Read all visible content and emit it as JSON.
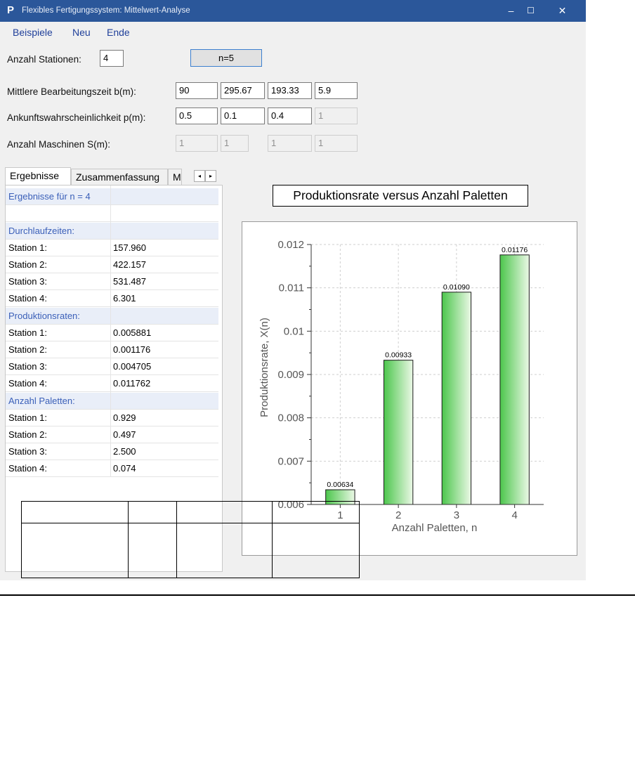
{
  "window": {
    "app_icon": "P",
    "title": "Flexibles Fertigungssystem: Mittelwert-Analyse",
    "controls": {
      "minimize": "–",
      "maximize": "☐",
      "close": "✕"
    }
  },
  "menu": [
    "Beispiele",
    "Neu",
    "Ende"
  ],
  "inputs": {
    "stations_label": "Anzahl Stationen:",
    "stations_value": "4",
    "n_button": "n=5",
    "b_label": "Mittlere Bearbeitungszeit b(m):",
    "b_values": [
      "90",
      "295.67",
      "193.33",
      "5.9"
    ],
    "p_label": "Ankunftswahrscheinlichkeit p(m):",
    "p_values": [
      "0.5",
      "0.1",
      "0.4",
      "1"
    ],
    "s_label": "Anzahl Maschinen S(m):",
    "s_values": [
      "1",
      "1",
      "1",
      "1"
    ]
  },
  "tabs": [
    "Ergebnisse",
    "Zusammenfassung",
    "M"
  ],
  "scroll": {
    "left": "◂",
    "right": "▸"
  },
  "results": {
    "header": "Ergebnisse für n = 4",
    "sections": [
      {
        "title": "Durchlaufzeiten:",
        "rows": [
          [
            "Station 1:",
            "157.960"
          ],
          [
            "Station 2:",
            "422.157"
          ],
          [
            "Station 3:",
            "531.487"
          ],
          [
            "Station 4:",
            "6.301"
          ]
        ]
      },
      {
        "title": "Produktionsraten:",
        "rows": [
          [
            "Station 1:",
            "0.005881"
          ],
          [
            "Station 2:",
            "0.001176"
          ],
          [
            "Station 3:",
            "0.004705"
          ],
          [
            "Station 4:",
            "0.011762"
          ]
        ]
      },
      {
        "title": "Anzahl Paletten:",
        "rows": [
          [
            "Station 1:",
            "0.929"
          ],
          [
            "Station 2:",
            "0.497"
          ],
          [
            "Station 3:",
            "2.500"
          ],
          [
            "Station 4:",
            "0.074"
          ]
        ]
      }
    ]
  },
  "chart_data": {
    "type": "bar",
    "title": "Produktionsrate versus Anzahl Paletten",
    "xlabel": "Anzahl Paletten, n",
    "ylabel": "Produktionsrate, X(n)",
    "categories": [
      "1",
      "2",
      "3",
      "4"
    ],
    "values": [
      0.00634,
      0.00933,
      0.0109,
      0.01176
    ],
    "value_labels": [
      "0.00634",
      "0.00933",
      "0.01090",
      "0.01176"
    ],
    "ylim": [
      0.006,
      0.012
    ],
    "yticks": [
      "0.006",
      "0.007",
      "0.008",
      "0.009",
      "0.01",
      "0.011",
      "0.012"
    ],
    "grid": true,
    "bar_color": "#4cc64c"
  }
}
